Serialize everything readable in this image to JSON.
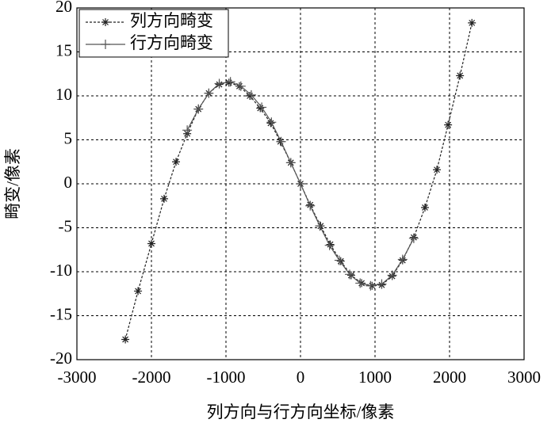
{
  "chart_data": {
    "type": "line",
    "x_label": "列方向与行方向坐标/像素",
    "y_label": "畸变/像素",
    "xlim": [
      -3000,
      3000
    ],
    "xticks": [
      -3000,
      -2000,
      -1000,
      0,
      1000,
      2000,
      3000
    ],
    "ylim": [
      -20,
      20
    ],
    "yticks": [
      -20,
      -15,
      -10,
      -5,
      0,
      5,
      10,
      15,
      20
    ],
    "grid": true,
    "legend": "upper left",
    "series": [
      {
        "name": "列方向畸变",
        "color": "#222222",
        "marker": "*",
        "linestyle": "dashed",
        "x": [
          -2350,
          -2180,
          -2000,
          -1830,
          -1670,
          -1520,
          -1370,
          -1230,
          -1090,
          -960,
          -820,
          -680,
          -540,
          -400,
          -270,
          -130,
          0,
          130,
          270,
          400,
          540,
          680,
          820,
          960,
          1090,
          1230,
          1370,
          1520,
          1670,
          1830,
          1980,
          2140,
          2300
        ],
        "values": [
          -17.7,
          -12.2,
          -6.8,
          -1.7,
          2.5,
          5.7,
          8.5,
          10.3,
          11.3,
          11.5,
          11.1,
          10.0,
          8.6,
          6.9,
          4.8,
          2.4,
          0,
          -2.4,
          -4.8,
          -6.9,
          -8.8,
          -10.4,
          -11.3,
          -11.6,
          -11.5,
          -10.5,
          -8.7,
          -6.1,
          -2.7,
          1.6,
          6.7,
          12.3,
          18.3
        ]
      },
      {
        "name": "行方向畸变",
        "color": "#555555",
        "marker": "+",
        "linestyle": "solid",
        "x": [
          -1520,
          -1370,
          -1230,
          -1090,
          -940,
          -800,
          -660,
          -520,
          -390,
          -260,
          -130,
          0,
          130,
          260,
          390,
          520,
          660,
          800,
          940,
          1090,
          1230,
          1370,
          1520
        ],
        "values": [
          6.1,
          8.5,
          10.3,
          11.4,
          11.6,
          11.1,
          10.1,
          8.7,
          7.0,
          4.8,
          2.4,
          0,
          -2.5,
          -4.8,
          -7.0,
          -8.7,
          -10.3,
          -11.3,
          -11.6,
          -11.4,
          -10.4,
          -8.6,
          -6.2
        ]
      }
    ]
  }
}
